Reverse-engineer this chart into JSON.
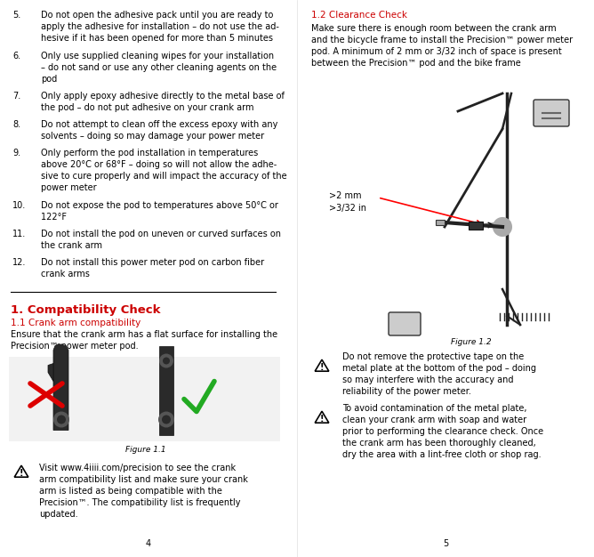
{
  "bg_color": "#ffffff",
  "red_color": "#cc0000",
  "black_color": "#000000",
  "list_items": [
    {
      "num": "5.",
      "text": "Do not open the adhesive pack until you are ready to\napply the adhesive for installation – do not use the ad-\nhesive if it has been opened for more than 5 minutes"
    },
    {
      "num": "6.",
      "text": "Only use supplied cleaning wipes for your installation\n– do not sand or use any other cleaning agents on the\npod"
    },
    {
      "num": "7.",
      "text": "Only apply epoxy adhesive directly to the metal base of\nthe pod – do not put adhesive on your crank arm"
    },
    {
      "num": "8.",
      "text": "Do not attempt to clean off the excess epoxy with any\nsolvents – doing so may damage your power meter"
    },
    {
      "num": "9.",
      "text": "Only perform the pod installation in temperatures\nabove 20°C or 68°F – doing so will not allow the adhe-\nsive to cure properly and will impact the accuracy of the\npower meter"
    },
    {
      "num": "10.",
      "text": "Do not expose the pod to temperatures above 50°C or\n122°F "
    },
    {
      "num": "11.",
      "text": "Do not install the pod on uneven or curved surfaces on\nthe crank arm"
    },
    {
      "num": "12.",
      "text": "Do not install this power meter pod on carbon fiber\ncrank arms"
    }
  ],
  "section1_title": "1. Compatibility Check",
  "section11_title": "1.1 Crank arm compatibility",
  "section11_body": "Ensure that the crank arm has a flat surface for installing the\nPrecision™ power meter pod.",
  "figure11_caption": "Figure 1.1",
  "warning1_text": "Visit www.4iiii.com/precision to see the crank\narm compatibility list and make sure your crank\narm is listed as being compatible with the\nPrecision™. The compatibility list is frequently\nupdated.",
  "section12_title": "1.2 Clearance Check",
  "section12_body": "Make sure there is enough room between the crank arm\nand the bicycle frame to install the Precision™ power meter\npod. A minimum of 2 mm or 3/32 inch of space is present\nbetween the Precision™ pod and the bike frame",
  "figure12_caption": "Figure 1.2",
  "label_2mm": ">2 mm",
  "label_3_32": ">3/32 in",
  "warning2_text": "Do not remove the protective tape on the\nmetal plate at the bottom of the pod – doing\nso may interfere with the accuracy and\nreliability of the power meter.",
  "warning3_text": "To avoid contamination of the metal plate,\nclean your crank arm with soap and water\nprior to performing the clearance check. Once\nthe crank arm has been thoroughly cleaned,\ndry the area with a lint-free cloth or shop rag.",
  "page_left": "4",
  "page_right": "5"
}
